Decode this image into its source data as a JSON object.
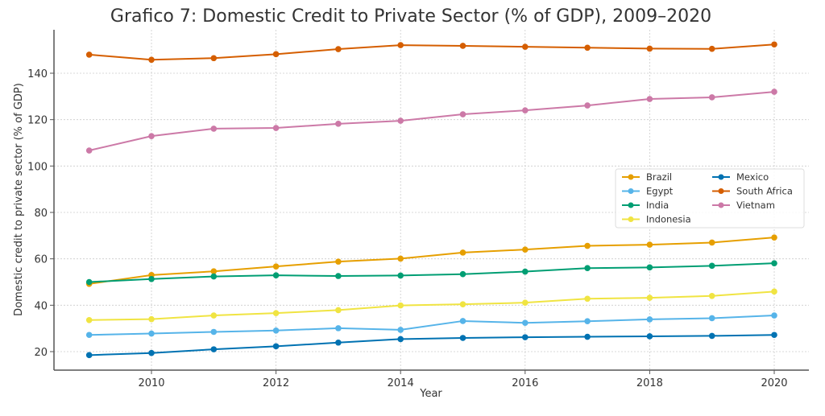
{
  "chart_data": {
    "type": "line",
    "title": "Grafico 7: Domestic Credit to Private Sector (% of GDP), 2009–2020",
    "xlabel": "Year",
    "ylabel": "Domestic credit to private sector (% of GDP)",
    "x": [
      2009,
      2010,
      2011,
      2012,
      2013,
      2014,
      2015,
      2016,
      2017,
      2018,
      2019,
      2020
    ],
    "xlim": [
      2008.25,
      2020.6
    ],
    "ylim": [
      12,
      158
    ],
    "xticks": [
      2010,
      2012,
      2014,
      2016,
      2018,
      2020
    ],
    "xtick_labels": [
      "2010",
      "2012",
      "2014",
      "2016",
      "2018",
      "2020"
    ],
    "yticks": [
      20,
      40,
      60,
      80,
      100,
      120,
      140
    ],
    "ytick_labels": [
      "20",
      "40",
      "60",
      "80",
      "100",
      "120",
      "140"
    ],
    "grid": true,
    "legend_position": "center-right",
    "series": [
      {
        "name": "Brazil",
        "color": "#E69F00",
        "values": [
          49.2,
          53.0,
          54.6,
          56.7,
          58.8,
          60.1,
          62.7,
          64.0,
          65.6,
          66.1,
          67.0,
          69.2
        ]
      },
      {
        "name": "Egypt",
        "color": "#56B4E9",
        "values": [
          27.2,
          27.8,
          28.5,
          29.1,
          30.1,
          29.4,
          33.2,
          32.4,
          33.1,
          33.9,
          34.4,
          35.6
        ]
      },
      {
        "name": "India",
        "color": "#009E73",
        "values": [
          50.0,
          51.3,
          52.4,
          52.9,
          52.6,
          52.8,
          53.4,
          54.5,
          56.0,
          56.3,
          57.0,
          58.1
        ]
      },
      {
        "name": "Indonesia",
        "color": "#F0E442",
        "values": [
          33.6,
          34.0,
          35.6,
          36.6,
          37.9,
          39.9,
          40.4,
          41.1,
          42.8,
          43.2,
          44.0,
          45.9
        ]
      },
      {
        "name": "Mexico",
        "color": "#0072B2",
        "values": [
          18.5,
          19.4,
          21.0,
          22.3,
          23.9,
          25.4,
          25.9,
          26.2,
          26.4,
          26.6,
          26.8,
          27.2
        ]
      },
      {
        "name": "South Africa",
        "color": "#D55E00",
        "values": [
          148.0,
          145.8,
          146.5,
          148.2,
          150.4,
          152.1,
          151.8,
          151.4,
          151.0,
          150.6,
          150.5,
          152.4
        ]
      },
      {
        "name": "Vietnam",
        "color": "#CC79A7",
        "values": [
          106.7,
          112.9,
          116.1,
          116.4,
          118.2,
          119.5,
          122.3,
          124.0,
          126.1,
          128.9,
          129.6,
          132.0
        ]
      }
    ]
  }
}
